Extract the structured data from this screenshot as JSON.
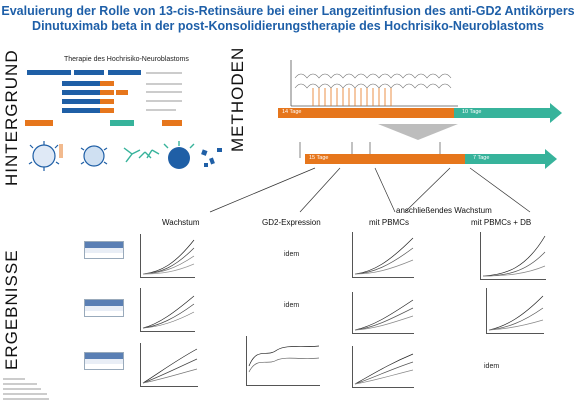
{
  "title": {
    "line1": "Evaluierung der Rolle von 13-cis-Retinsäure bei einer Langzeitinfusion des anti-GD2 Antikörpers",
    "line2": "Dinutuximab beta in der post-Konsolidierungstherapie des Hochrisiko-Neuroblastoms"
  },
  "sections": {
    "hintergrund": "HINTERGRUND",
    "methoden": "METHODEN",
    "ergebnisse": "ERGEBNISSE"
  },
  "hintergrund": {
    "panel_title": "Therapie des Hochrisiko-Neuroblastoms"
  },
  "methoden": {
    "phase1_days": "14 Tage",
    "phase2_days": "10 Tage",
    "phase3_days": "15 Tage",
    "phase4_days": "7 Tage"
  },
  "ergebnisse": {
    "columns": [
      "Wachstum",
      "GD2-Expression",
      "mit PBMCs",
      "mit PBMCs + DB"
    ],
    "header_bridge": "anschließendes Wachstum",
    "idem": "idem"
  },
  "colors": {
    "title": "#1e5fa8",
    "blue": "#1f5fa6",
    "orange": "#e6761c",
    "green": "#37b39b"
  }
}
